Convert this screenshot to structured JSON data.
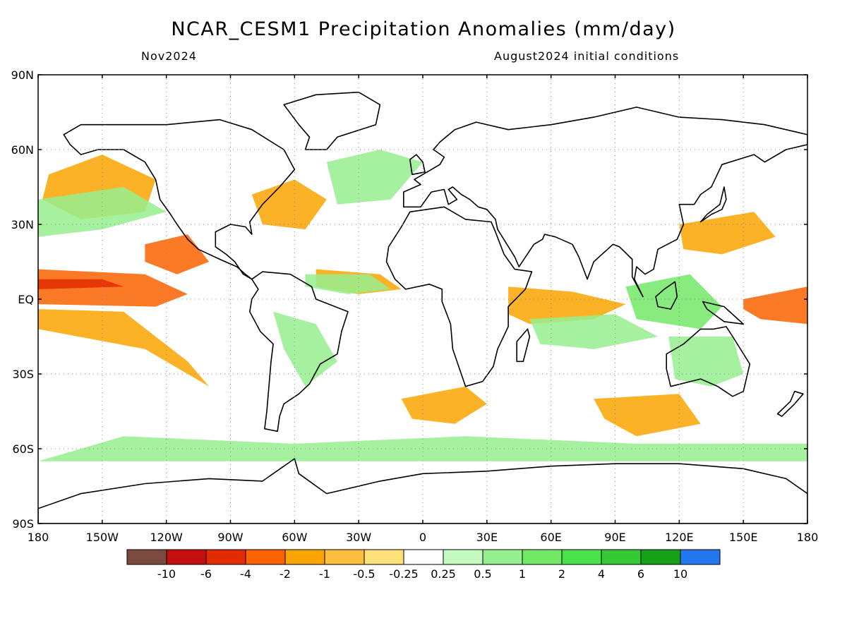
{
  "title": "NCAR_CESM1 Precipitation Anomalies (mm/day)",
  "subtitle_left": "Nov2024",
  "subtitle_right": "August2024 initial conditions",
  "map": {
    "projection": "equirectangular",
    "lon_range": [
      -180,
      180
    ],
    "lat_range": [
      -90,
      90
    ],
    "grid": true,
    "grid_style": "dotted",
    "lat_ticks": [
      {
        "value": 90,
        "label": "90N"
      },
      {
        "value": 60,
        "label": "60N"
      },
      {
        "value": 30,
        "label": "30N"
      },
      {
        "value": 0,
        "label": "EQ"
      },
      {
        "value": -30,
        "label": "30S"
      },
      {
        "value": -60,
        "label": "60S"
      },
      {
        "value": -90,
        "label": "90S"
      }
    ],
    "lon_ticks": [
      {
        "value": -180,
        "label": "180"
      },
      {
        "value": -150,
        "label": "150W"
      },
      {
        "value": -120,
        "label": "120W"
      },
      {
        "value": -90,
        "label": "90W"
      },
      {
        "value": -60,
        "label": "60W"
      },
      {
        "value": -30,
        "label": "30W"
      },
      {
        "value": 0,
        "label": "0"
      },
      {
        "value": 30,
        "label": "30E"
      },
      {
        "value": 60,
        "label": "60E"
      },
      {
        "value": 90,
        "label": "90E"
      },
      {
        "value": 120,
        "label": "120E"
      },
      {
        "value": 150,
        "label": "150E"
      },
      {
        "value": 180,
        "label": "180"
      }
    ],
    "anomaly_regions": [
      {
        "name": "central-pacific-dry-band",
        "class": -2,
        "lon": [
          -180,
          -130,
          -110,
          -125,
          -180
        ],
        "lat": [
          12,
          10,
          2,
          -3,
          -2
        ]
      },
      {
        "name": "equatorial-pacific-dry-core",
        "class": -4,
        "lon": [
          -180,
          -150,
          -140,
          -180
        ],
        "lat": [
          8,
          8,
          5,
          4
        ]
      },
      {
        "name": "south-pacific-dry-tongue",
        "class": -1,
        "lon": [
          -180,
          -140,
          -110,
          -100,
          -130,
          -180
        ],
        "lat": [
          -4,
          -5,
          -25,
          -35,
          -20,
          -12
        ]
      },
      {
        "name": "northeast-pacific-dry",
        "class": -1,
        "lon": [
          -175,
          -150,
          -125,
          -130,
          -160,
          -178
        ],
        "lat": [
          50,
          58,
          48,
          35,
          32,
          40
        ]
      },
      {
        "name": "east-pacific-itcz-dry",
        "class": -2,
        "lon": [
          -130,
          -110,
          -100,
          -115,
          -130
        ],
        "lat": [
          22,
          26,
          15,
          10,
          15
        ]
      },
      {
        "name": "gulf-stream-dry",
        "class": -1,
        "lon": [
          -80,
          -60,
          -45,
          -55,
          -75
        ],
        "lat": [
          42,
          48,
          40,
          28,
          30
        ]
      },
      {
        "name": "tropical-atlantic-dry",
        "class": -1,
        "lon": [
          -50,
          -20,
          -10,
          -30,
          -50
        ],
        "lat": [
          12,
          10,
          4,
          2,
          5
        ]
      },
      {
        "name": "west-indian-ocean-dry",
        "class": -1,
        "lon": [
          40,
          70,
          95,
          80,
          50,
          40
        ],
        "lat": [
          5,
          3,
          -2,
          -8,
          -10,
          -6
        ]
      },
      {
        "name": "western-pacific-dry-core",
        "class": -2,
        "lon": [
          150,
          180,
          180,
          158,
          150
        ],
        "lat": [
          0,
          5,
          -10,
          -8,
          -4
        ]
      },
      {
        "name": "subtropical-nw-pacific-dry",
        "class": -1,
        "lon": [
          120,
          155,
          165,
          140,
          122
        ],
        "lat": [
          30,
          35,
          25,
          18,
          20
        ]
      },
      {
        "name": "south-atlantic-dry",
        "class": -1,
        "lon": [
          -10,
          20,
          30,
          15,
          -5
        ],
        "lat": [
          -40,
          -35,
          -42,
          -50,
          -48
        ]
      },
      {
        "name": "south-indian-ocean-dry",
        "class": -1,
        "lon": [
          80,
          120,
          130,
          100,
          85
        ],
        "lat": [
          -40,
          -38,
          -50,
          -55,
          -48
        ]
      },
      {
        "name": "maritime-continent-wet",
        "class": 2,
        "lon": [
          95,
          125,
          140,
          130,
          100
        ],
        "lat": [
          5,
          10,
          -3,
          -12,
          -8
        ]
      },
      {
        "name": "indian-ocean-wet-band",
        "class": 1,
        "lon": [
          50,
          90,
          110,
          80,
          55
        ],
        "lat": [
          -8,
          -6,
          -15,
          -20,
          -18
        ]
      },
      {
        "name": "north-pacific-wet-band",
        "class": 1,
        "lon": [
          -180,
          -140,
          -120,
          -150,
          -180
        ],
        "lat": [
          40,
          45,
          35,
          28,
          25
        ]
      },
      {
        "name": "north-atlantic-wet",
        "class": 1,
        "lon": [
          -45,
          -20,
          0,
          -15,
          -40
        ],
        "lat": [
          55,
          60,
          55,
          40,
          38
        ]
      },
      {
        "name": "southern-ocean-wet",
        "class": 1,
        "lon": [
          -140,
          -60,
          20,
          100,
          180,
          180,
          -180
        ],
        "lat": [
          -55,
          -58,
          -55,
          -58,
          -58,
          -65,
          -65
        ]
      },
      {
        "name": "south-america-wet",
        "class": 1,
        "lon": [
          -70,
          -50,
          -40,
          -55,
          -65
        ],
        "lat": [
          -5,
          -10,
          -25,
          -35,
          -20
        ]
      },
      {
        "name": "australia-wet",
        "class": 1,
        "lon": [
          115,
          145,
          150,
          135,
          118
        ],
        "lat": [
          -15,
          -15,
          -30,
          -35,
          -32
        ]
      },
      {
        "name": "tropical-north-atlantic-wet",
        "class": 1,
        "lon": [
          -55,
          -25,
          -15,
          -35,
          -55
        ],
        "lat": [
          10,
          10,
          4,
          2,
          5
        ]
      }
    ]
  },
  "colorbar": {
    "colors": [
      "#7b4a3f",
      "#c40f0f",
      "#e32b00",
      "#fc6200",
      "#fba400",
      "#fbbf3f",
      "#fde07a",
      "#ffffff",
      "#c4f9c0",
      "#96ef8e",
      "#72e866",
      "#4ae24a",
      "#36c936",
      "#15a115",
      "#2377ef"
    ],
    "labels": [
      "-10",
      "-6",
      "-4",
      "-2",
      "-1",
      "-0.5",
      "-0.25",
      "0.25",
      "0.5",
      "1",
      "2",
      "4",
      "6",
      "10"
    ]
  }
}
